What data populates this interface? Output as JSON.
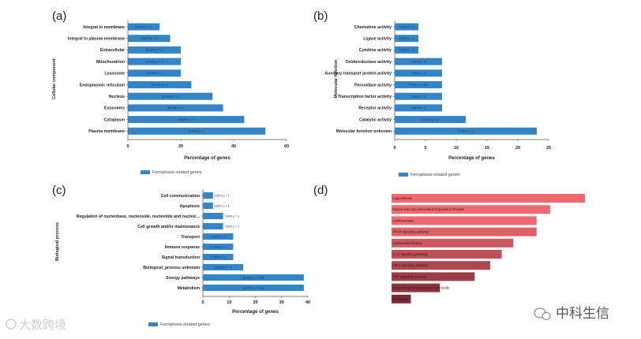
{
  "colors": {
    "bar": "#3485c8",
    "d_light": "#ef6a70",
    "d_dark": "#7a2c36",
    "axis": "#555555"
  },
  "watermarks": {
    "left": "大数跨境",
    "right": "中科生信"
  },
  "chart_data": [
    {
      "panel": "(a)",
      "type": "bar",
      "orientation": "horizontal",
      "ylabel": "Cellular component",
      "xlabel": "Percentage of genes",
      "xlim": [
        0,
        60
      ],
      "xticks": [
        "0",
        "20",
        "40",
        "60"
      ],
      "legend": "Ferroptosis-related genes",
      "categories": [
        "Integral to membrane",
        "Integral to plasma membrane",
        "Extracellular",
        "Mitochondrion",
        "Lysosome",
        "Endoplasmic reticulum",
        "Nucleus",
        "Exosomes",
        "Cytoplasm",
        "Plasma membrane"
      ],
      "values": [
        12,
        16,
        20,
        20,
        20,
        24,
        32,
        36,
        44,
        52
      ],
      "labels": [
        "12.00% p = 1",
        "16.00% p = 1",
        "20.00% p = 1",
        "20.00% p = 1",
        "20.00% p = 1",
        "24.00% p = 1",
        "32.00% p = 1",
        "36.00% p = 1",
        "44.00% p = 1",
        "52.00% p = 1"
      ]
    },
    {
      "panel": "(b)",
      "type": "bar",
      "orientation": "horizontal",
      "ylabel": "Molecular function",
      "xlabel": "Percentage of genes",
      "xlim": [
        0,
        25
      ],
      "xticks": [
        "0",
        "5",
        "10",
        "15",
        "20",
        "25"
      ],
      "legend": "Ferroptosis-related genes",
      "categories": [
        "Chemokine activity",
        "Ligase activity",
        "Cytokine activity",
        "Oxidoreductase activity",
        "Auxiliary transport protein activity",
        "Peroxidase activity",
        "Transcription factor activity",
        "Receptor activity",
        "Catalytic activity",
        "Molecular function unknown"
      ],
      "values": [
        3.85,
        3.85,
        3.85,
        7.69,
        7.69,
        7.69,
        7.69,
        7.69,
        11.54,
        23.08
      ],
      "labels": [
        "3.85% p = 1",
        "3.85% p = 1",
        "3.85% p = 1",
        "7.69% p = 1",
        "7.69% p = 1",
        "7.69% p = 0.081",
        "7.69% p = 1",
        "7.69% p = 1",
        "11.54% p = 1",
        "23.08% p = 1"
      ]
    },
    {
      "panel": "(c)",
      "type": "bar",
      "orientation": "horizontal",
      "ylabel": "Biological process",
      "xlabel": "Percentage of genes",
      "xlim": [
        0,
        40
      ],
      "xticks": [
        "0",
        "10",
        "20",
        "30",
        "40"
      ],
      "legend": "Ferroptosis-related genes",
      "categories": [
        "Cell communication",
        "Apoptosis",
        "Regulation of nucleobase, nucleoside, nucleotide and nucleic...",
        "Cell growth and/or maintenance",
        "Transport",
        "Immune response",
        "Signal transduction",
        "Biological_process unknown",
        "Energy pathways",
        "Metabolism"
      ],
      "values": [
        3.85,
        3.85,
        7.69,
        7.69,
        11.54,
        11.54,
        11.54,
        15.38,
        38.46,
        38.46
      ],
      "labels": [
        "3.85% p = 1",
        "3.85% p = 1",
        "7.69% p = 1",
        "7.69% p = 1",
        "11.54% p = 1",
        "11.54% p = 1",
        "11.54% p = 1",
        "15.38% p = 1",
        "38.46% p = 0.008",
        "38.46% p = 0.011"
      ]
    },
    {
      "panel": "(d)",
      "type": "bar",
      "orientation": "horizontal",
      "categories": [
        "Legionellosis",
        "Kaposi sarcoma-associated herpesvirus infection",
        "Leishmaniasis",
        "PPAR signaling pathway",
        "Salmonella infection",
        "IL-17 signaling pathway",
        "HIF-1 signaling pathway",
        "TNF signaling pathway",
        "Biosynthesis of unsaturated fatty acids",
        "Ferroptosis"
      ],
      "values": [
        10,
        8.2,
        7.5,
        7.5,
        6.3,
        5.7,
        5.1,
        4.3,
        2.5,
        1.0
      ],
      "xlim": [
        0,
        10
      ]
    }
  ]
}
